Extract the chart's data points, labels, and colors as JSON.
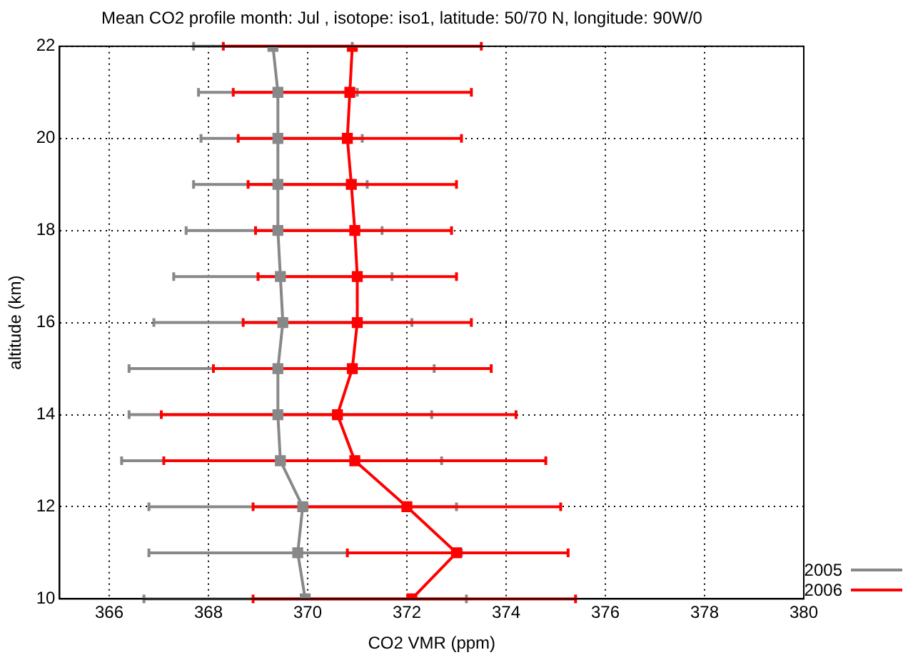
{
  "chart_data": {
    "type": "line",
    "title": "Mean CO2 profile month: Jul , isotope: iso1, latitude: 50/70 N, longitude: 90W/0",
    "xlabel": "CO2 VMR (ppm)",
    "ylabel": "altitude (km)",
    "xlim": [
      365,
      380
    ],
    "xticks": [
      366,
      368,
      370,
      372,
      374,
      376,
      378,
      380
    ],
    "ylim": [
      10,
      22
    ],
    "yticks": [
      10,
      12,
      14,
      16,
      18,
      20,
      22
    ],
    "grid": true,
    "legend": "bottom right",
    "marker": "square",
    "line_style": "solid",
    "series": [
      {
        "name": "2005",
        "color": "#888888",
        "x": [
          369.95,
          369.8,
          369.9,
          369.45,
          369.4,
          369.4,
          369.5,
          369.45,
          369.4,
          369.4,
          369.4,
          369.4,
          369.3
        ],
        "values": [
          10,
          11,
          12,
          13,
          14,
          15,
          16,
          17,
          18,
          19,
          20,
          21,
          22
        ],
        "xerrors": [
          [
            366.7,
            373.2
          ],
          [
            366.8,
            373.1
          ],
          [
            366.8,
            373.0
          ],
          [
            366.25,
            372.7
          ],
          [
            366.4,
            372.5
          ],
          [
            366.4,
            372.55
          ],
          [
            366.9,
            372.1
          ],
          [
            367.3,
            371.7
          ],
          [
            367.55,
            371.5
          ],
          [
            367.7,
            371.2
          ],
          [
            367.85,
            371.1
          ],
          [
            367.8,
            371.0
          ],
          [
            367.7,
            370.9
          ]
        ]
      },
      {
        "name": "2006",
        "color": "#ff0000",
        "x": [
          372.1,
          373.0,
          372.0,
          370.95,
          370.6,
          370.9,
          371.0,
          371.0,
          370.95,
          370.88,
          370.8,
          370.85,
          370.9
        ],
        "values": [
          10,
          11,
          12,
          13,
          14,
          15,
          16,
          17,
          18,
          19,
          20,
          21,
          22
        ],
        "xerrors": [
          [
            368.9,
            375.4
          ],
          [
            370.8,
            375.25
          ],
          [
            368.9,
            375.1
          ],
          [
            367.1,
            374.8
          ],
          [
            367.05,
            374.2
          ],
          [
            368.1,
            373.7
          ],
          [
            368.7,
            373.3
          ],
          [
            369.0,
            373.0
          ],
          [
            368.95,
            372.9
          ],
          [
            368.8,
            373.0
          ],
          [
            368.6,
            373.1
          ],
          [
            368.5,
            373.3
          ],
          [
            368.3,
            373.5
          ]
        ]
      }
    ]
  }
}
